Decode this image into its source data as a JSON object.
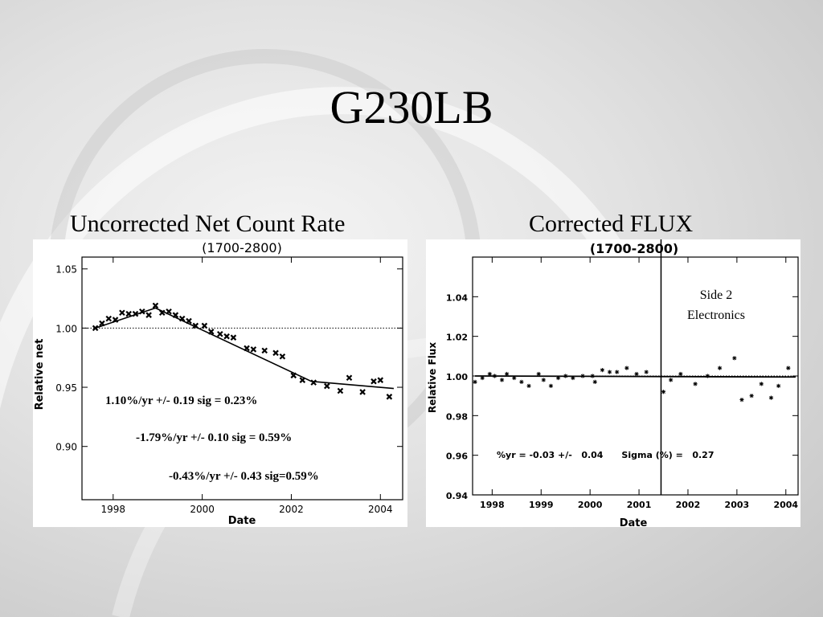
{
  "slide": {
    "title": "G230LB",
    "left_subtitle": "Uncorrected Net Count Rate",
    "right_subtitle": "Corrected FLUX"
  },
  "chart_data": [
    {
      "type": "scatter",
      "title": "(1700-2800)",
      "xlabel": "Date",
      "ylabel": "Relative net",
      "xlim": [
        1997.3,
        2004.5
      ],
      "ylim": [
        0.855,
        1.06
      ],
      "xticks": [
        1998,
        2000,
        2002,
        2004
      ],
      "xtick_labels": [
        "1998",
        "2000",
        "2002",
        "2004"
      ],
      "yticks": [
        0.9,
        0.95,
        1.0,
        1.05
      ],
      "ytick_labels": [
        "0.90",
        "0.95",
        "1.00",
        "1.05"
      ],
      "reference_line": 1.0,
      "points": {
        "x": [
          1997.6,
          1997.75,
          1997.9,
          1998.05,
          1998.2,
          1998.35,
          1998.5,
          1998.65,
          1998.8,
          1998.95,
          1999.1,
          1999.25,
          1999.4,
          1999.55,
          1999.7,
          1999.85,
          2000.05,
          2000.2,
          2000.4,
          2000.55,
          2000.7,
          2001.0,
          2001.15,
          2001.4,
          2001.65,
          2001.8,
          2002.05,
          2002.25,
          2002.5,
          2002.8,
          2003.1,
          2003.3,
          2003.6,
          2003.85,
          2004.0,
          2004.2
        ],
        "y": [
          1.0,
          1.004,
          1.008,
          1.007,
          1.013,
          1.012,
          1.012,
          1.014,
          1.011,
          1.019,
          1.013,
          1.014,
          1.011,
          1.008,
          1.006,
          1.002,
          1.002,
          0.997,
          0.995,
          0.993,
          0.992,
          0.983,
          0.982,
          0.981,
          0.979,
          0.976,
          0.96,
          0.956,
          0.954,
          0.951,
          0.947,
          0.958,
          0.946,
          0.955,
          0.956,
          0.942
        ]
      },
      "trend_line": {
        "x": [
          1997.6,
          1998.95,
          2002.45,
          2004.3
        ],
        "y": [
          1.0,
          1.017,
          0.955,
          0.949
        ]
      },
      "annotations": [
        "1.10%/yr +/- 0.19   sig = 0.23%",
        "-1.79%/yr +/- 0.10   sig = 0.59%",
        "-0.43%/yr +/- 0.43  sig=0.59%"
      ]
    },
    {
      "type": "scatter",
      "title": "(1700-2800)",
      "xlabel": "Date",
      "ylabel": "Relative Flux",
      "xlim": [
        1997.6,
        2004.25
      ],
      "ylim": [
        0.94,
        1.06
      ],
      "xticks": [
        1998,
        1999,
        2000,
        2001,
        2002,
        2003,
        2004
      ],
      "xtick_labels": [
        "1998",
        "1999",
        "2000",
        "2001",
        "2002",
        "2003",
        "2004"
      ],
      "yticks": [
        0.94,
        0.96,
        0.98,
        1.0,
        1.02,
        1.04
      ],
      "ytick_labels": [
        "0.94",
        "0.96",
        "0.98",
        "1.00",
        "1.02",
        "1.04"
      ],
      "reference_line": 1.0,
      "points": {
        "x": [
          1997.65,
          1997.8,
          1997.95,
          1998.05,
          1998.2,
          1998.3,
          1998.45,
          1998.6,
          1998.75,
          1998.95,
          1999.05,
          1999.2,
          1999.35,
          1999.5,
          1999.65,
          1999.85,
          2000.05,
          2000.1,
          2000.25,
          2000.4,
          2000.55,
          2000.75,
          2000.95,
          2001.15,
          2001.5,
          2001.65,
          2001.85,
          2002.15,
          2002.4,
          2002.65,
          2002.95,
          2003.1,
          2003.3,
          2003.5,
          2003.7,
          2003.85,
          2004.05
        ],
        "y": [
          0.997,
          0.999,
          1.001,
          1.0,
          0.998,
          1.001,
          0.999,
          0.997,
          0.995,
          1.001,
          0.998,
          0.995,
          0.999,
          1.0,
          0.999,
          1.0,
          1.0,
          0.997,
          1.003,
          1.002,
          1.002,
          1.004,
          1.001,
          1.002,
          0.992,
          0.998,
          1.001,
          0.996,
          1.0,
          1.004,
          1.009,
          0.988,
          0.99,
          0.996,
          0.989,
          0.995,
          1.004
        ]
      },
      "trend_line": {
        "x": [
          1997.65,
          2004.2
        ],
        "y": [
          1.0,
          0.9995
        ]
      },
      "vertical_marker": {
        "x": 2001.45,
        "label_line1": "Side 2",
        "label_line2": "Electronics"
      },
      "annotation": "%yr = -0.03 +/-   0.04      Sigma (%) =   0.27"
    }
  ]
}
